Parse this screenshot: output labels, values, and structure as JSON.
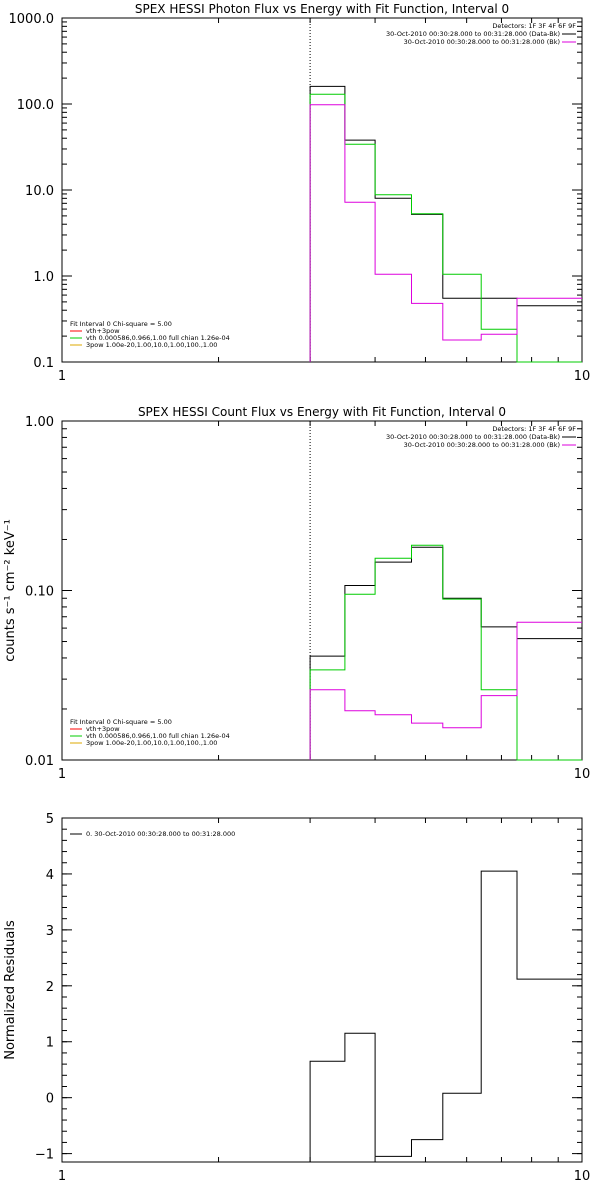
{
  "colors": {
    "black": "#000000",
    "green": "#00cc00",
    "magenta": "#dd00dd",
    "red": "#ff0000",
    "orange": "#ddaa00"
  },
  "chart_data": [
    {
      "type": "line",
      "title": "SPEX HESSI Photon Flux vs Energy with Fit Function, Interval 0",
      "xlabel": "",
      "ylabel": "",
      "xscale": "log",
      "yscale": "log",
      "xlim": [
        1,
        10
      ],
      "ylim": [
        0.1,
        1000
      ],
      "x_ticks": [
        {
          "v": 1,
          "label": "1"
        },
        {
          "v": 10,
          "label": "10"
        }
      ],
      "y_ticks": [
        {
          "v": 0.1,
          "label": "0.1"
        },
        {
          "v": 1,
          "label": "1.0"
        },
        {
          "v": 10,
          "label": "10.0"
        },
        {
          "v": 100,
          "label": "100.0"
        },
        {
          "v": 1000,
          "label": "1000.0"
        }
      ],
      "dotted_x": 3.0,
      "bin_edges": [
        3.0,
        3.5,
        4.0,
        4.7,
        5.4,
        6.4,
        7.5,
        8.8,
        10.0
      ],
      "series": [
        {
          "color": "#000000",
          "values": [
            160,
            38,
            8.0,
            5.2,
            0.55,
            0.55,
            0.45,
            0.45
          ]
        },
        {
          "color": "#00cc00",
          "values": [
            130,
            34,
            8.8,
            5.3,
            1.05,
            0.24,
            0.1,
            0.1
          ]
        },
        {
          "color": "#dd00dd",
          "values": [
            98,
            7.2,
            1.05,
            0.48,
            0.18,
            0.21,
            0.55,
            0.55
          ]
        }
      ],
      "right_legend": {
        "header": "Detectors: 1F 3F 4F 6F 9F",
        "items": [
          {
            "text": "30-Oct-2010 00:30:28.000 to 00:31:28.000 (Data-Bk)",
            "color": "#000000"
          },
          {
            "text": "30-Oct-2010 00:30:28.000 to 00:31:28.000 (Bk)",
            "color": "#dd00dd"
          }
        ]
      },
      "left_legend": {
        "header": "Fit Interval 0   Chi-square = 5.00",
        "items": [
          {
            "text": "vth+3pow",
            "color": "#ff0000"
          },
          {
            "text": "vth 0.000586,0.966,1.00  full chian 1.26e-04",
            "color": "#00cc00"
          },
          {
            "text": "3pow 1.00e-20,1.00,10.0,1.00,100.,1.00",
            "color": "#ddaa00"
          }
        ]
      }
    },
    {
      "type": "line",
      "title": "SPEX HESSI Count Flux vs Energy with Fit Function, Interval 0",
      "xlabel": "",
      "ylabel": "counts s⁻¹ cm⁻² keV⁻¹",
      "xscale": "log",
      "yscale": "log",
      "xlim": [
        1,
        10
      ],
      "ylim": [
        0.01,
        1.0
      ],
      "x_ticks": [
        {
          "v": 1,
          "label": "1"
        },
        {
          "v": 10,
          "label": "10"
        }
      ],
      "y_ticks": [
        {
          "v": 0.01,
          "label": "0.01"
        },
        {
          "v": 0.1,
          "label": "0.10"
        },
        {
          "v": 1.0,
          "label": "1.00"
        }
      ],
      "dotted_x": 3.0,
      "bin_edges": [
        3.0,
        3.5,
        4.0,
        4.7,
        5.4,
        6.4,
        7.5,
        8.8,
        10.0
      ],
      "series": [
        {
          "color": "#000000",
          "values": [
            0.041,
            0.107,
            0.147,
            0.18,
            0.09,
            0.061,
            0.052,
            0.052
          ]
        },
        {
          "color": "#00cc00",
          "values": [
            0.034,
            0.095,
            0.155,
            0.185,
            0.089,
            0.026,
            0.01,
            0.01
          ]
        },
        {
          "color": "#dd00dd",
          "values": [
            0.026,
            0.0195,
            0.0185,
            0.0165,
            0.0155,
            0.024,
            0.065,
            0.065
          ]
        }
      ],
      "right_legend": {
        "header": "Detectors: 1F 3F 4F 6F 9F",
        "items": [
          {
            "text": "30-Oct-2010 00:30:28.000 to 00:31:28.000 (Data-Bk)",
            "color": "#000000"
          },
          {
            "text": "30-Oct-2010 00:30:28.000 to 00:31:28.000 (Bk)",
            "color": "#dd00dd"
          }
        ]
      },
      "left_legend": {
        "header": "Fit Interval 0   Chi-square = 5.00",
        "items": [
          {
            "text": "vth+3pow",
            "color": "#ff0000"
          },
          {
            "text": "vth 0.000586,0.966,1.00  full chian 1.26e-04",
            "color": "#00cc00"
          },
          {
            "text": "3pow 1.00e-20,1.00,10.0,1.00,100.,1.00",
            "color": "#ddaa00"
          }
        ]
      }
    },
    {
      "type": "line",
      "title": "",
      "xlabel": "",
      "ylabel": "Normalized Residuals",
      "xscale": "log",
      "yscale": "linear",
      "xlim": [
        1,
        10
      ],
      "ylim": [
        -1.15,
        5
      ],
      "x_ticks": [
        {
          "v": 1,
          "label": "1"
        },
        {
          "v": 10,
          "label": "10"
        }
      ],
      "y_ticks": [
        {
          "v": -1,
          "label": "−1"
        },
        {
          "v": 0,
          "label": "0"
        },
        {
          "v": 1,
          "label": "1"
        },
        {
          "v": 2,
          "label": "2"
        },
        {
          "v": 3,
          "label": "3"
        },
        {
          "v": 4,
          "label": "4"
        },
        {
          "v": 5,
          "label": "5"
        }
      ],
      "bin_edges": [
        3.0,
        3.5,
        4.0,
        4.7,
        5.4,
        6.4,
        7.5,
        8.8,
        10.0
      ],
      "series": [
        {
          "color": "#000000",
          "values": [
            0.65,
            1.15,
            -1.05,
            -0.75,
            0.08,
            4.05,
            2.12,
            2.12
          ]
        }
      ],
      "left_legend": {
        "header": "",
        "items": [
          {
            "text": "0. 30-Oct-2010 00:30:28.000 to 00:31:28.000",
            "color": "#000000"
          }
        ]
      }
    }
  ]
}
